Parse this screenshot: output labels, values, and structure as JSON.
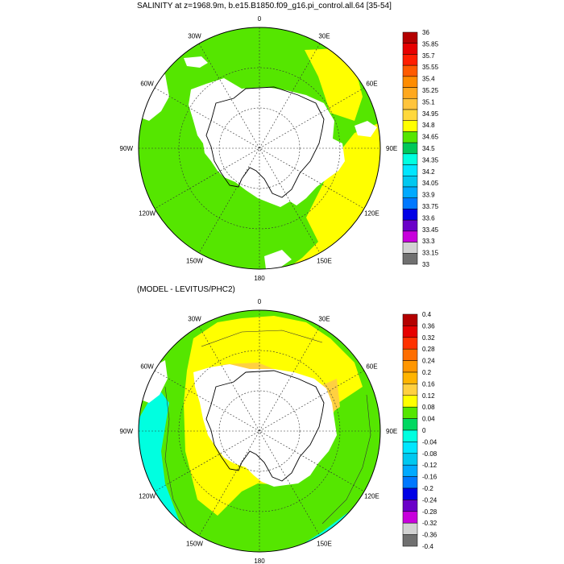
{
  "panels": [
    {
      "title": "SALINITY at z=1968.9m, b.e15.B1850.f09_g16.pi_control.all.64 [35-54]",
      "lon_labels": [
        "0",
        "30E",
        "60E",
        "90E",
        "120E",
        "150E",
        "180",
        "150W",
        "120W",
        "90W",
        "60W",
        "30W"
      ],
      "colorbar": {
        "levels": [
          "36",
          "35.85",
          "35.7",
          "35.55",
          "35.4",
          "35.25",
          "35.1",
          "34.95",
          "34.8",
          "34.65",
          "34.5",
          "34.35",
          "34.2",
          "34.05",
          "33.9",
          "33.75",
          "33.6",
          "33.45",
          "33.3",
          "33.15",
          "33"
        ],
        "colors": [
          "#b40000",
          "#e60000",
          "#ff1e00",
          "#ff5a00",
          "#ff8c00",
          "#ffa81e",
          "#ffc43c",
          "#ffd83c",
          "#ffff00",
          "#55e600",
          "#00c85a",
          "#00ffe0",
          "#00e6ff",
          "#00c8f0",
          "#00aaff",
          "#0078ff",
          "#0000e6",
          "#6a00c8",
          "#c800dc",
          "#d2d2d2",
          "#707070"
        ]
      },
      "map_colors": {
        "ocean": "#55e600",
        "high": "#ffff00",
        "missing": "#ffffff"
      }
    },
    {
      "title": "(MODEL - LEVITUS/PHC2)",
      "lon_labels": [
        "0",
        "30E",
        "60E",
        "90E",
        "120E",
        "150E",
        "180",
        "150W",
        "120W",
        "90W",
        "60W",
        "30W"
      ],
      "colorbar": {
        "levels": [
          "0.4",
          "0.36",
          "0.32",
          "0.28",
          "0.24",
          "0.2",
          "0.16",
          "0.12",
          "0.08",
          "0.04",
          "0",
          "-0.04",
          "-0.08",
          "-0.12",
          "-0.16",
          "-0.2",
          "-0.24",
          "-0.28",
          "-0.32",
          "-0.36",
          "-0.4"
        ],
        "colors": [
          "#b40000",
          "#e60000",
          "#ff3200",
          "#ff6e00",
          "#ff9600",
          "#ffb400",
          "#ffd040",
          "#ffff00",
          "#55e600",
          "#00d860",
          "#00ffe0",
          "#00e6ff",
          "#00c8f0",
          "#00aaff",
          "#0078ff",
          "#0000e6",
          "#6a00c8",
          "#c800dc",
          "#d2d2d2",
          "#707070"
        ]
      },
      "map_colors": {
        "ocean": "#55e600",
        "positive": "#ffff00",
        "strong": "#ffd040",
        "negative": "#00ffe0",
        "missing": "#ffffff"
      }
    }
  ]
}
